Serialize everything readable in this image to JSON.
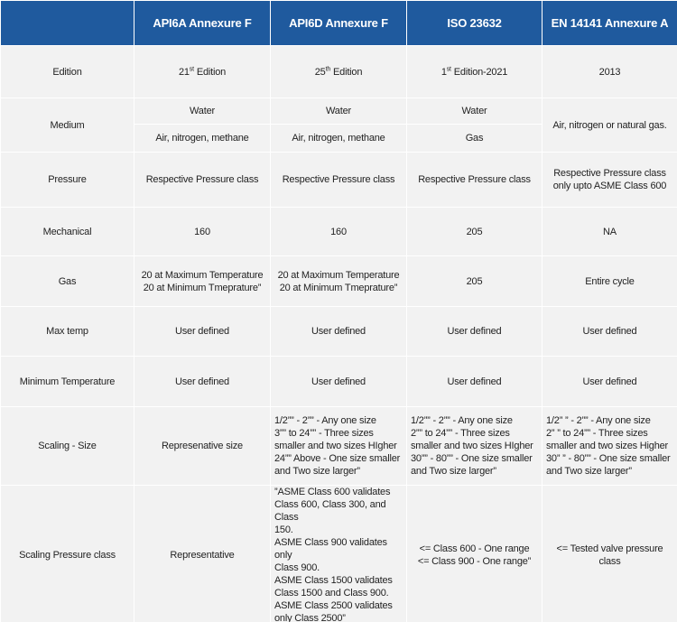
{
  "header": {
    "columns": [
      "API6A Annexure F",
      "API6D Annexure F",
      "ISO 23632",
      "EN 14141 Annexure A"
    ]
  },
  "table": {
    "rows": [
      {
        "label": "Edition",
        "cells": [
          {
            "number": "21",
            "suffix": "st",
            "rest": "Edition"
          },
          {
            "number": "25",
            "suffix": "th",
            "rest": "Edition"
          },
          {
            "number": "1",
            "suffix": "st",
            "rest": "Edition-2021"
          },
          "2013"
        ]
      },
      {
        "label": "Medium",
        "cells": [
          {
            "top": "Water",
            "bottom": "Air, nitrogen, methane"
          },
          {
            "top": "Water",
            "bottom": "Air, nitrogen, methane"
          },
          {
            "top": "Water",
            "bottom": "Gas"
          },
          "Air, nitrogen or natural gas."
        ]
      },
      {
        "label": "Pressure",
        "cells": [
          "Respective Pressure class",
          "Respective Pressure class",
          "Respective Pressure class",
          [
            "Respective Pressure class",
            "only upto ASME Class 600"
          ]
        ]
      },
      {
        "label": "Mechanical",
        "cells": [
          "160",
          "160",
          "205",
          "NA"
        ]
      },
      {
        "label": "Gas",
        "cells": [
          [
            "20 at Maximum Temperature",
            "20 at Minimum Tmeprature”"
          ],
          [
            "20 at Maximum Temperature",
            "20 at Minimum Tmeprature”"
          ],
          "205",
          "Entire cycle"
        ]
      },
      {
        "label": "Max  temp",
        "cells": [
          "User defined",
          "User defined",
          "User defined",
          "User defined"
        ]
      },
      {
        "label": "Minimum Temperature",
        "cells": [
          "User defined",
          "User defined",
          "User defined",
          "User defined"
        ]
      },
      {
        "label": "Scaling - Size",
        "cells": [
          "Represenative size",
          [
            "1/2”” - 2”” - Any one size",
            "3”” to 24”” - Three sizes",
            "smaller and two sizes HIgher",
            "24”” Above - One size smaller",
            "and Two size larger”"
          ],
          [
            "1/2”” - 2”” - Any one size",
            "2”” to 24”” - Three sizes",
            "smaller and two sizes HIgher",
            "30”” - 80”” - One size smaller",
            "and Two size larger”"
          ],
          [
            "1/2” ” - 2”” - Any one size",
            "2” ” to 24”” - Three sizes",
            "smaller and two sizes Higher",
            "30” ” - 80”” - One size smaller",
            "and Two size larger”"
          ]
        ]
      },
      {
        "label": "Scaling Pressure class",
        "cells": [
          "Representative",
          [
            "”ASME Class 600 validates",
            "Class 600, Class 300, and Class",
            "150.",
            "ASME Class 900 validates only",
            "Class 900.",
            "ASME Class 1500 validates",
            "Class 1500 and Class 900.",
            "ASME Class 2500 validates",
            "only Class 2500”"
          ],
          [
            "<= Class 600 - One range",
            "<= Class 900 - One range”"
          ],
          "<= Tested valve pressure class"
        ]
      }
    ]
  }
}
